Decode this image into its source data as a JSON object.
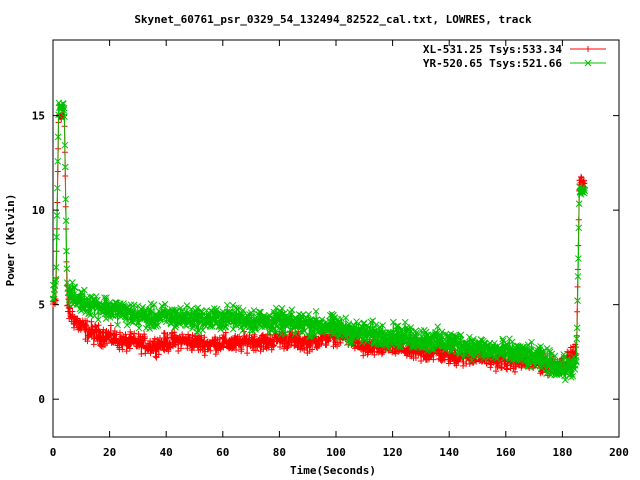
{
  "chart_data": {
    "type": "scatter",
    "title": "Skynet_60761_psr_0329_54_132494_82522_cal.txt, LOWRES, track",
    "xlabel": "Time(Seconds)",
    "ylabel": "Power (Kelvin)",
    "xlim": [
      0,
      200
    ],
    "ylim": [
      -2,
      19
    ],
    "xticks": [
      "0",
      "20",
      "40",
      "60",
      "80",
      "100",
      "120",
      "140",
      "160",
      "180",
      "200"
    ],
    "yticks": [
      "0",
      "5",
      "10",
      "15"
    ],
    "xtick_values": [
      0,
      20,
      40,
      60,
      80,
      100,
      120,
      140,
      160,
      180,
      200
    ],
    "ytick_values": [
      0,
      5,
      10,
      15
    ],
    "legend_position": "top-right",
    "grid": false,
    "series": [
      {
        "name": "XL-531.25 Tsys:533.34",
        "color": "#ff0000",
        "marker": "plus",
        "x": [
          0,
          1,
          2,
          3,
          4,
          5,
          6,
          10,
          15,
          20,
          25,
          30,
          35,
          40,
          45,
          50,
          55,
          60,
          65,
          70,
          75,
          80,
          85,
          90,
          95,
          100,
          105,
          110,
          115,
          120,
          125,
          130,
          135,
          140,
          145,
          150,
          155,
          160,
          165,
          170,
          175,
          180,
          185,
          186,
          187,
          188
        ],
        "y": [
          5.0,
          5.2,
          15.0,
          15.0,
          15.0,
          5.0,
          4.5,
          3.8,
          3.4,
          3.3,
          3.0,
          3.0,
          2.8,
          3.0,
          3.1,
          3.0,
          2.9,
          3.0,
          2.9,
          3.1,
          3.0,
          3.2,
          3.1,
          3.0,
          3.2,
          3.4,
          3.2,
          2.7,
          2.7,
          2.8,
          2.6,
          2.4,
          2.5,
          2.3,
          2.2,
          2.3,
          2.1,
          2.0,
          2.0,
          1.9,
          1.8,
          1.8,
          2.5,
          11.5,
          11.5,
          11.5
        ],
        "spread": [
          0.6,
          0.6,
          0.3,
          0.3,
          0.3,
          0.6,
          0.8,
          0.8,
          0.8,
          0.7,
          0.7,
          0.7,
          0.7,
          0.7,
          0.7,
          0.7,
          0.7,
          0.7,
          0.7,
          0.7,
          0.7,
          0.7,
          0.7,
          0.7,
          0.7,
          0.7,
          0.7,
          0.7,
          0.7,
          0.7,
          0.7,
          0.7,
          0.7,
          0.7,
          0.7,
          0.7,
          0.7,
          0.7,
          0.7,
          0.7,
          0.7,
          0.7,
          0.7,
          0.4,
          0.4,
          0.4
        ]
      },
      {
        "name": "YR-520.65 Tsys:521.66",
        "color": "#00c000",
        "marker": "cross",
        "x": [
          0,
          1,
          2,
          3,
          4,
          5,
          6,
          10,
          15,
          20,
          25,
          30,
          35,
          40,
          45,
          50,
          55,
          60,
          65,
          70,
          75,
          80,
          85,
          90,
          95,
          100,
          105,
          110,
          115,
          120,
          125,
          130,
          135,
          140,
          145,
          150,
          155,
          160,
          165,
          170,
          175,
          180,
          185,
          186,
          187,
          188
        ],
        "y": [
          5.5,
          6.0,
          15.5,
          15.5,
          15.5,
          5.8,
          5.5,
          5.2,
          5.0,
          4.8,
          4.6,
          4.4,
          4.3,
          4.4,
          4.3,
          4.3,
          4.2,
          4.3,
          4.3,
          4.2,
          4.1,
          4.1,
          4.0,
          4.0,
          3.9,
          3.8,
          3.6,
          3.5,
          3.4,
          3.4,
          3.3,
          3.2,
          3.1,
          3.0,
          2.9,
          2.7,
          2.6,
          2.5,
          2.4,
          2.2,
          2.0,
          1.6,
          1.8,
          11.0,
          11.0,
          11.0
        ],
        "spread": [
          0.7,
          0.7,
          0.3,
          0.3,
          0.3,
          0.7,
          0.9,
          0.9,
          0.9,
          0.9,
          0.9,
          0.9,
          0.9,
          0.9,
          0.9,
          0.9,
          0.9,
          0.9,
          0.9,
          0.9,
          0.9,
          0.9,
          0.9,
          0.9,
          0.9,
          0.9,
          0.9,
          0.9,
          0.9,
          0.9,
          0.9,
          0.9,
          0.9,
          0.9,
          0.9,
          0.9,
          0.9,
          0.9,
          0.9,
          0.9,
          0.9,
          0.9,
          0.9,
          0.4,
          0.4,
          0.4
        ]
      }
    ]
  }
}
